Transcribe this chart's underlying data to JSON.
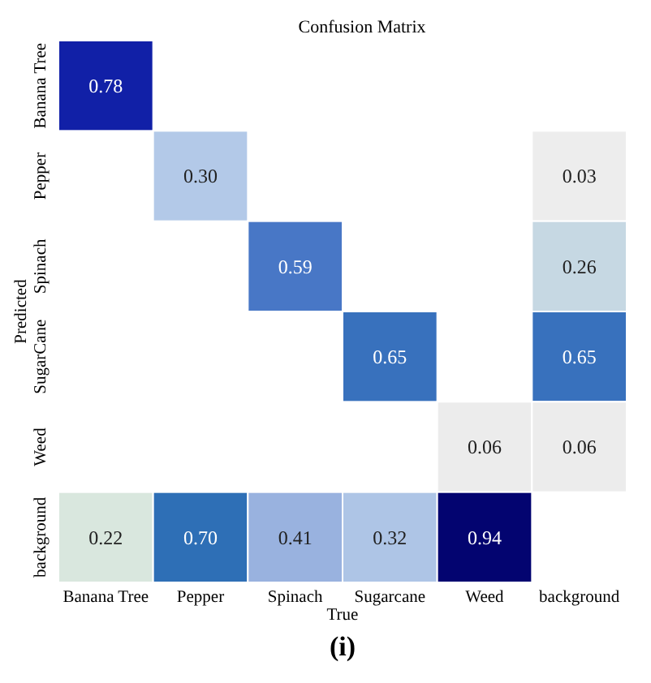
{
  "chart_data": {
    "type": "heatmap",
    "title": "Confusion Matrix",
    "xlabel": "True",
    "ylabel": "Predicted",
    "categories": [
      "Banana Tree",
      "Pepper",
      "Spinach",
      "Sugarcane",
      "Weed",
      "background"
    ],
    "y_categories": [
      "Banana Tree",
      "Pepper",
      "Spinach",
      "SugarCane",
      "Weed",
      "background"
    ],
    "cells": [
      [
        0.78,
        null,
        null,
        null,
        null,
        null
      ],
      [
        null,
        0.3,
        null,
        null,
        null,
        0.03
      ],
      [
        null,
        null,
        0.59,
        null,
        null,
        0.26
      ],
      [
        null,
        null,
        null,
        0.65,
        null,
        0.65
      ],
      [
        null,
        null,
        null,
        null,
        0.06,
        0.06
      ],
      [
        0.22,
        0.7,
        0.41,
        0.32,
        0.94,
        null
      ]
    ],
    "cell_labels": [
      [
        "0.78",
        null,
        null,
        null,
        null,
        null
      ],
      [
        null,
        "0.30",
        null,
        null,
        null,
        "0.03"
      ],
      [
        null,
        null,
        "0.59",
        null,
        null,
        "0.26"
      ],
      [
        null,
        null,
        null,
        "0.65",
        null,
        "0.65"
      ],
      [
        null,
        null,
        null,
        null,
        "0.06",
        "0.06"
      ],
      [
        "0.22",
        "0.70",
        "0.41",
        "0.32",
        "0.94",
        null
      ]
    ],
    "annotations": [
      "(i)"
    ]
  }
}
